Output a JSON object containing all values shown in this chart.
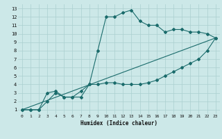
{
  "xlabel": "Humidex (Indice chaleur)",
  "ylabel": "",
  "bg_color": "#cce8e8",
  "grid_color": "#aacfcf",
  "line_color": "#1a6b6b",
  "xlim": [
    -0.5,
    23.5
  ],
  "ylim": [
    0.5,
    13.5
  ],
  "xticks": [
    0,
    1,
    2,
    3,
    4,
    5,
    6,
    7,
    8,
    9,
    10,
    11,
    12,
    13,
    14,
    15,
    16,
    17,
    18,
    19,
    20,
    21,
    22,
    23
  ],
  "yticks": [
    1,
    2,
    3,
    4,
    5,
    6,
    7,
    8,
    9,
    10,
    11,
    12,
    13
  ],
  "line1_x": [
    0,
    1,
    2,
    3,
    4,
    5,
    6,
    7,
    8,
    9,
    10,
    11,
    12,
    13,
    14,
    15,
    16,
    17,
    18,
    19,
    20,
    21,
    22,
    23
  ],
  "line1_y": [
    1,
    1,
    1,
    3,
    3.2,
    2.5,
    2.5,
    2.5,
    4,
    8,
    12,
    12,
    12.5,
    12.8,
    11.5,
    11,
    11,
    10.2,
    10.5,
    10.5,
    10.2,
    10.2,
    10,
    9.5
  ],
  "line2_x": [
    0,
    1,
    2,
    3,
    4,
    5,
    6,
    7,
    8,
    9,
    10,
    11,
    12,
    13,
    14,
    15,
    16,
    17,
    18,
    19,
    20,
    21,
    22,
    23
  ],
  "line2_y": [
    1,
    1,
    1,
    2,
    3,
    2.5,
    2.5,
    3.2,
    4,
    4,
    4.2,
    4.2,
    4,
    4,
    4,
    4.2,
    4.5,
    5,
    5.5,
    6,
    6.5,
    7,
    8,
    9.5
  ],
  "line3_x": [
    0,
    23
  ],
  "line3_y": [
    1,
    9.5
  ],
  "markersize": 2.0
}
